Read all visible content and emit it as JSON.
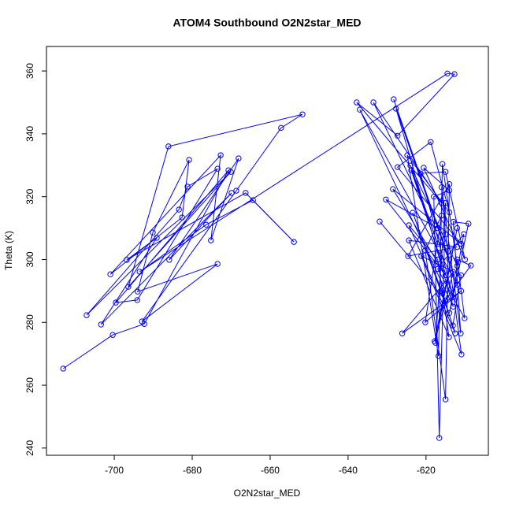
{
  "chart_data": {
    "type": "line",
    "title": "ATOM4 Southbound O2N2star_MED",
    "x_label": "O2N2star_MED",
    "y_label": "Theta (K)",
    "color": "#0000ff",
    "markers": true,
    "x": [
      -713.1,
      -700.4,
      -692.3,
      -670.7,
      -699.6,
      -694.1,
      -673.5,
      -681.2,
      -683.4,
      -707.1,
      -670.1,
      -696.4,
      -686.1,
      -651.7,
      -657.2,
      -668.7,
      -692.9,
      -673.5,
      -694.0,
      -690.1,
      -680.8,
      -682.6,
      -701.0,
      -672.7,
      -675.2,
      -668.1,
      -685.9,
      -669.9,
      -703.4,
      -689.1,
      -696.8,
      -666.3,
      -653.9,
      -664.4,
      -676.4,
      -693.5,
      -614.5,
      -612.7,
      -627.3,
      -637.8,
      -616.0,
      -633.5,
      -614.0,
      -628.3,
      -612.0,
      -637.0,
      -613.0,
      -627.7,
      -617.0,
      -630.3,
      -615.0,
      -628.5,
      -611.0,
      -627.3,
      -618.8,
      -614.0,
      -624.8,
      -616.8,
      -615.8,
      -612.0,
      -624.0,
      -617.0,
      -623.8,
      -613.0,
      -621.4,
      -615.0,
      -610.0,
      -620.6,
      -614.0,
      -618.0,
      -616.6,
      -615.0,
      -617.6,
      -612.0,
      -617.8,
      -613.0,
      -626.1,
      -611.0,
      -620.2,
      -616.0,
      -620.2,
      -615.0,
      -614.0,
      -624.6,
      -612.0,
      -624.4,
      -614.1,
      -617.0,
      -624.4,
      -612.5,
      -616.0,
      -623.4,
      -613.1,
      -611.0,
      -621.2,
      -610.9,
      -615.0,
      -616.0,
      -611.1,
      -613.0,
      -609.1,
      -614.0,
      -610.3,
      -617.0,
      -610.1,
      -612.0,
      -608.5,
      -615.0,
      -631.9
    ],
    "y": [
      265.3,
      276.0,
      279.5,
      328.4,
      286.3,
      287.1,
      328.9,
      323.2,
      315.9,
      282.3,
      327.9,
      291.3,
      336.0,
      346.2,
      341.9,
      321.9,
      280.3,
      298.6,
      289.8,
      308.6,
      331.7,
      313.4,
      295.3,
      333.2,
      306.1,
      332.2,
      299.9,
      321.2,
      279.3,
      306.9,
      299.9,
      321.2,
      305.6,
      318.9,
      311.1,
      296.1,
      359.2,
      359.0,
      339.4,
      350.0,
      318.0,
      350.0,
      300.0,
      351.0,
      292.0,
      347.7,
      285.0,
      348.0,
      310.0,
      319.1,
      295.0,
      322.4,
      305.0,
      329.4,
      337.4,
      315.0,
      333.2,
      269.3,
      330.4,
      298.0,
      329.9,
      305.0,
      328.4,
      288.0,
      327.4,
      327.9,
      300.0,
      329.2,
      322.0,
      320.0,
      243.2,
      318.0,
      273.5,
      310.0,
      274.0,
      296.0,
      276.5,
      290.0,
      280.0,
      314.0,
      302.9,
      255.5,
      324.0,
      301.1,
      304.0,
      306.1,
      275.3,
      300.0,
      310.9,
      276.5,
      290.0,
      314.9,
      279.0,
      295.0,
      301.1,
      269.8,
      308.0,
      323.0,
      276.5,
      312.0,
      311.4,
      283.0,
      308.1,
      297.0,
      281.3,
      300.0,
      298.1,
      287.0,
      312.1
    ],
    "xlim": [
      -717.4,
      -604.0
    ],
    "ylim": [
      237.7,
      367.8
    ],
    "xticks": [
      -700,
      -680,
      -660,
      -640,
      -620
    ],
    "yticks": [
      240,
      260,
      280,
      300,
      320,
      340,
      360
    ]
  }
}
